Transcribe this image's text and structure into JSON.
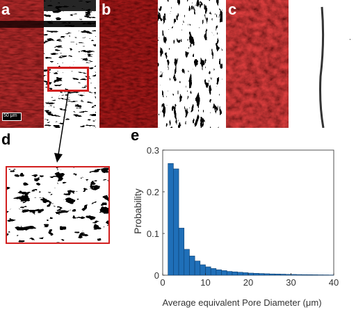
{
  "panels": {
    "a": {
      "letter": "a",
      "scale_bar": "50 μm"
    },
    "b": {
      "letter": "b"
    },
    "c": {
      "letter": "c"
    },
    "d": {
      "letter": "d"
    },
    "e": {
      "letter": "e"
    }
  },
  "colors": {
    "fluorescence_red": "#c41a1a",
    "background_dark": "#2a0505",
    "highlight_box": "#d21e1e",
    "bar_fill": "#1f6fb8",
    "bar_edge": "#0c3d6e"
  },
  "chart_data": {
    "type": "bar",
    "xlabel": "Average equivalent Pore Diameter (μm)",
    "ylabel": "Probability",
    "xlim": [
      0,
      40
    ],
    "ylim": [
      0,
      0.3
    ],
    "xticks": [
      0,
      10,
      20,
      30,
      40
    ],
    "yticks": [
      0,
      0.1,
      0.2,
      0.3
    ],
    "bin_width": 1.25,
    "x": [
      0.625,
      1.875,
      3.125,
      4.375,
      5.625,
      6.875,
      8.125,
      9.375,
      10.625,
      11.875,
      13.125,
      14.375,
      15.625,
      16.875,
      18.125,
      19.375,
      20.625,
      21.875,
      23.125,
      24.375,
      25.625,
      26.875,
      28.125,
      29.375,
      30.625,
      31.875,
      33.125,
      34.375,
      35.625,
      36.875,
      38.125,
      39.375
    ],
    "values": [
      0.0,
      0.268,
      0.255,
      0.113,
      0.062,
      0.046,
      0.034,
      0.025,
      0.02,
      0.016,
      0.013,
      0.011,
      0.009,
      0.008,
      0.007,
      0.006,
      0.005,
      0.0045,
      0.004,
      0.0035,
      0.003,
      0.0028,
      0.0025,
      0.002,
      0.0018,
      0.0015,
      0.0013,
      0.0012,
      0.001,
      0.0008,
      0.0007,
      0.0005
    ],
    "grid": false,
    "legend": "none"
  }
}
